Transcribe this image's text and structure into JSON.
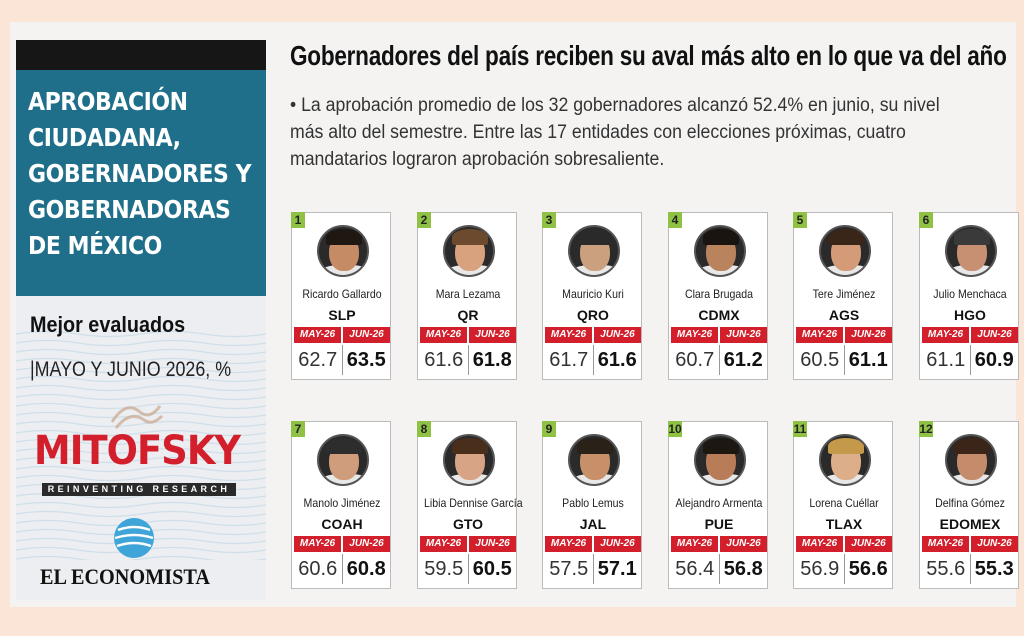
{
  "panel": {
    "title_lines": [
      "APROBACIÓN",
      "CIUDADANA,",
      "GOBERNADORES Y",
      "GOBERNADORAS",
      "DE MÉXICO"
    ],
    "subtitle": "Mejor evaluados",
    "period": "|MAYO Y JUNIO 2026, %",
    "brand": "MITOFSKY",
    "brand_tagline": "REINVENTING RESEARCH",
    "publisher": "EL ECONOMISTA"
  },
  "headline": "Gobernadores del país reciben su aval más alto en lo que va del año",
  "description": "• La aprobación promedio de los 32 gobernadores alcanzó 52.4% en junio, su nivel más alto del semestre. Entre las 17 entidades con elecciones próximas, cuatro mandatarios lograron aprobación sobresaliente.",
  "col_headers": {
    "may": "MAY-26",
    "jun": "JUN-26"
  },
  "colors": {
    "accent_red": "#d21f2b",
    "teal": "#1f6f8b",
    "rank_green": "#8fc145"
  },
  "governors": [
    {
      "rank": "1",
      "name": "Ricardo Gallardo",
      "state": "SLP",
      "may": "62.7",
      "jun": "63.5"
    },
    {
      "rank": "2",
      "name": "Mara Lezama",
      "state": "QR",
      "may": "61.6",
      "jun": "61.8"
    },
    {
      "rank": "3",
      "name": "Mauricio Kuri",
      "state": "QRO",
      "may": "61.7",
      "jun": "61.6"
    },
    {
      "rank": "4",
      "name": "Clara Brugada",
      "state": "CDMX",
      "may": "60.7",
      "jun": "61.2"
    },
    {
      "rank": "5",
      "name": "Tere Jiménez",
      "state": "AGS",
      "may": "60.5",
      "jun": "61.1"
    },
    {
      "rank": "6",
      "name": "Julio Menchaca",
      "state": "HGO",
      "may": "61.1",
      "jun": "60.9"
    },
    {
      "rank": "7",
      "name": "Manolo Jiménez",
      "state": "COAH",
      "may": "60.6",
      "jun": "60.8"
    },
    {
      "rank": "8",
      "name": "Libia Dennise García",
      "state": "GTO",
      "may": "59.5",
      "jun": "60.5"
    },
    {
      "rank": "9",
      "name": "Pablo Lemus",
      "state": "JAL",
      "may": "57.5",
      "jun": "57.1"
    },
    {
      "rank": "10",
      "name": "Alejandro Armenta",
      "state": "PUE",
      "may": "56.4",
      "jun": "56.8"
    },
    {
      "rank": "11",
      "name": "Lorena Cuéllar",
      "state": "TLAX",
      "may": "56.9",
      "jun": "56.6"
    },
    {
      "rank": "12",
      "name": "Delfina Gómez",
      "state": "EDOMEX",
      "may": "55.6",
      "jun": "55.3"
    }
  ]
}
